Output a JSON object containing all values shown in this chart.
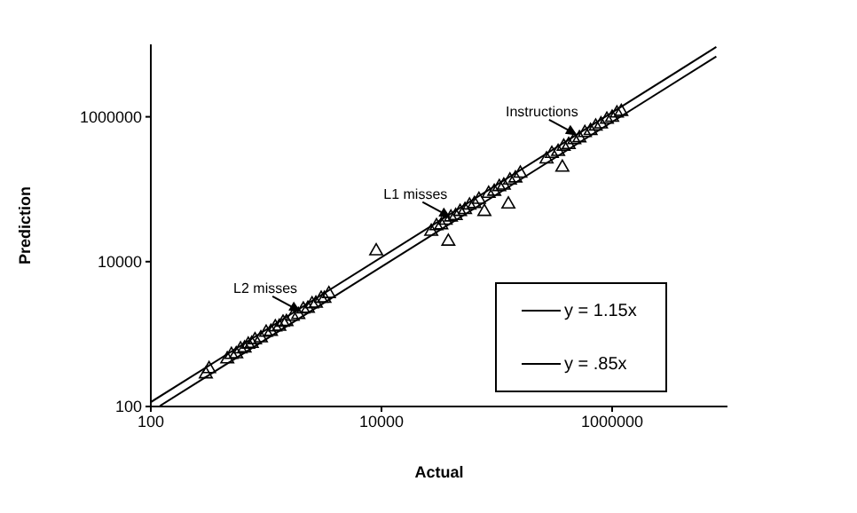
{
  "chart_data": {
    "type": "scatter",
    "xlabel": "Actual",
    "ylabel": "Prediction",
    "log": "xy",
    "xlim": [
      100,
      10000000
    ],
    "ylim": [
      100,
      10000000
    ],
    "xticks": [
      100,
      10000,
      1000000
    ],
    "yticks": [
      100,
      10000,
      1000000
    ],
    "legend": "bottom right",
    "marker": "triangle",
    "line_style": "solid",
    "series": [
      {
        "color": "#000000",
        "x": [
          300,
          320,
          460,
          500,
          550,
          600,
          650,
          700,
          750,
          800,
          900,
          1000,
          1100,
          1200,
          1300,
          1400,
          1500,
          1700,
          1900,
          2100,
          2300,
          2500,
          2700,
          3000,
          3200,
          3500,
          9000,
          27000,
          30000,
          33000,
          36000,
          38000,
          40000,
          44000,
          48000,
          53000,
          58000,
          64000,
          70000,
          78000,
          85000,
          95000,
          105000,
          115000,
          126000,
          130000,
          145000,
          160000,
          270000,
          300000,
          340000,
          370000,
          380000,
          420000,
          470000,
          520000,
          580000,
          650000,
          720000,
          800000,
          900000,
          1000000,
          1100000,
          1200000
        ],
        "values": [
          280,
          330,
          450,
          520,
          530,
          620,
          640,
          720,
          740,
          830,
          880,
          1050,
          1080,
          1250,
          1270,
          1450,
          1480,
          1750,
          1850,
          2200,
          2250,
          2600,
          2650,
          3100,
          3100,
          3600,
          14000,
          26000,
          31000,
          32000,
          37000,
          19000,
          41000,
          43000,
          49000,
          52000,
          60000,
          63000,
          72000,
          49000,
          87000,
          93000,
          108000,
          113000,
          62000,
          133000,
          142000,
          165000,
          260000,
          310000,
          330000,
          200000,
          390000,
          410000,
          480000,
          510000,
          600000,
          640000,
          740000,
          790000,
          920000,
          980000,
          1120000,
          1180000
        ]
      },
      {
        "type": "line",
        "name": "y = 1.15x",
        "color": "#000000",
        "marker": "none",
        "x": [
          100,
          8000000
        ],
        "values": [
          115,
          9200000
        ]
      },
      {
        "type": "line",
        "name": "y = .85x",
        "color": "#000000",
        "marker": "none",
        "x": [
          120,
          8000000
        ],
        "values": [
          102,
          6800000
        ]
      }
    ],
    "annotations": [
      {
        "text": "L2 misses",
        "x": 2000,
        "y": 2000
      },
      {
        "text": "L1 misses",
        "x": 40000,
        "y": 40000
      },
      {
        "text": "Instructions",
        "x": 500000,
        "y": 550000
      }
    ]
  }
}
